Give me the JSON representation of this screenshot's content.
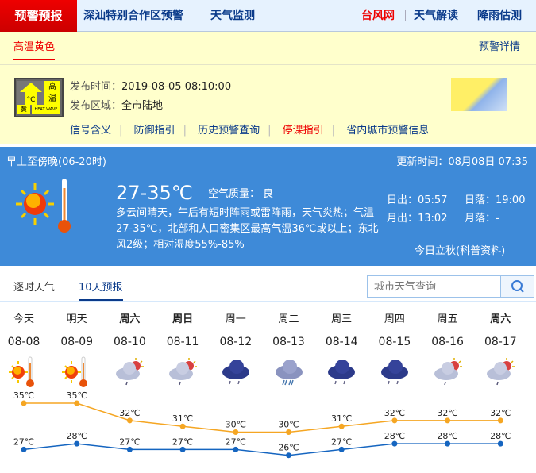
{
  "nav": {
    "brand": "预警预报",
    "items": [
      "深汕特别合作区预警",
      "天气监测"
    ],
    "right": [
      {
        "label": "台风网",
        "color": "#e00000"
      },
      {
        "label": "天气解读",
        "color": "#0a3a8a"
      },
      {
        "label": "降雨估测",
        "color": "#0a3a8a"
      }
    ]
  },
  "warning": {
    "tab": "高温黄色",
    "detail_link": "预警详情",
    "signal": {
      "top": "高",
      "bottom": "温",
      "level": "黄",
      "en": "HEAT WAVE",
      "unit": "°C"
    },
    "time_label": "发布时间：",
    "time": "2019-08-05 08:10:00",
    "area_label": "发布区域：",
    "area": "全市陆地",
    "links": [
      "信号含义",
      "防御指引",
      "历史预警查询",
      "停课指引",
      "省内城市预警信息"
    ]
  },
  "today": {
    "period": "早上至傍晚(06-20时)",
    "update": "更新时间：08月08日 07:35",
    "temp": "27-35℃",
    "aq": "空气质量： 良",
    "desc": "多云间晴天，午后有短时阵雨或雷阵雨，天气炎热；气温27-35℃，北部和人口密集区最高气温36℃或以上；东北风2级；相对湿度55%-85%",
    "sunrise": "日出：05:57",
    "sunset": "日落：19:00",
    "moonrise": "月出：13:02",
    "moonset": "月落：-",
    "solar_term": "今日立秋(科普资料)"
  },
  "forecast_tabs": [
    "逐时天气",
    "10天预报"
  ],
  "search": {
    "placeholder": "城市天气查询",
    "icon": "search-icon"
  },
  "chart_data": {
    "type": "line",
    "categories": [
      "08-08",
      "08-09",
      "08-10",
      "08-11",
      "08-12",
      "08-13",
      "08-14",
      "08-15",
      "08-16",
      "08-17"
    ],
    "weekdays": [
      "今天",
      "明天",
      "周六",
      "周日",
      "周一",
      "周二",
      "周三",
      "周四",
      "周五",
      "周六"
    ],
    "bold": [
      false,
      false,
      true,
      true,
      false,
      false,
      false,
      false,
      false,
      true
    ],
    "icons": [
      "sunny-hot",
      "sunny-hot",
      "partly-cloudy-shower",
      "partly-cloudy-shower",
      "rain",
      "heavy-rain",
      "rain",
      "rain",
      "partly-cloudy-shower",
      "partly-cloudy-shower"
    ],
    "series": [
      {
        "values": [
          35,
          35,
          32,
          31,
          30,
          30,
          31,
          32,
          32,
          32
        ],
        "color": "#f5a623"
      },
      {
        "values": [
          27,
          28,
          27,
          27,
          27,
          26,
          27,
          28,
          28,
          28
        ],
        "color": "#1565c0"
      }
    ],
    "unit": "℃"
  }
}
